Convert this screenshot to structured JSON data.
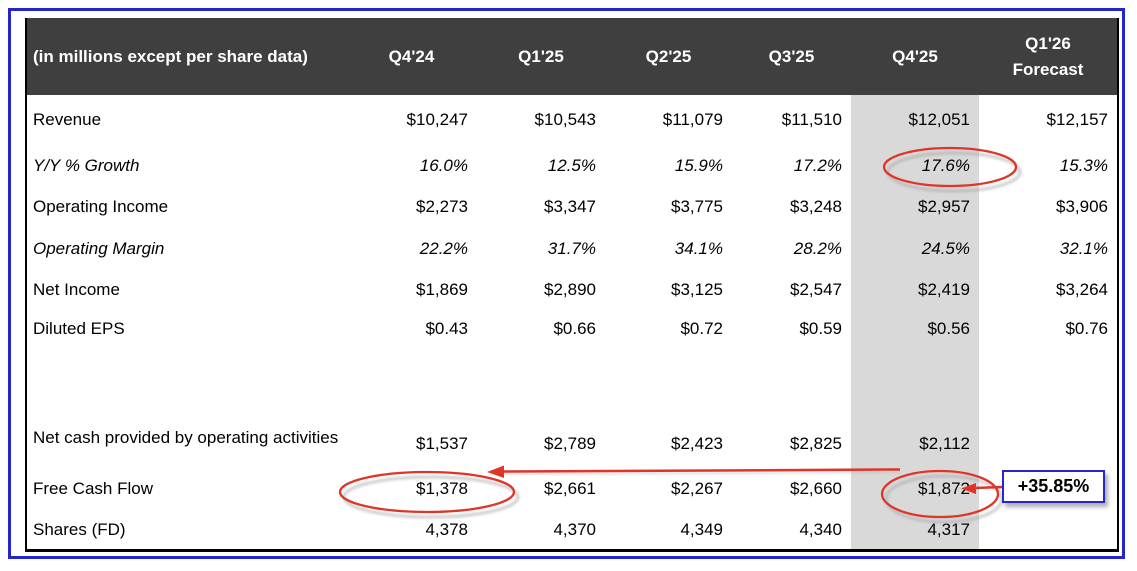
{
  "chart_data": {
    "type": "table",
    "unit_note": "(in millions except per share data)",
    "columns": [
      "Q4'24",
      "Q1'25",
      "Q2'25",
      "Q3'25",
      "Q4'25",
      "Q1'26 Forecast"
    ],
    "highlighted_column": "Q4'25",
    "rows": [
      {
        "label": "Revenue",
        "italic": false,
        "values": [
          "$10,247",
          "$10,543",
          "$11,079",
          "$11,510",
          "$12,051",
          "$12,157"
        ]
      },
      {
        "label": "Y/Y % Growth",
        "italic": true,
        "values": [
          "16.0%",
          "12.5%",
          "15.9%",
          "17.2%",
          "17.6%",
          "15.3%"
        ]
      },
      {
        "label": "Operating Income",
        "italic": false,
        "values": [
          "$2,273",
          "$3,347",
          "$3,775",
          "$3,248",
          "$2,957",
          "$3,906"
        ]
      },
      {
        "label": "Operating Margin",
        "italic": true,
        "values": [
          "22.2%",
          "31.7%",
          "34.1%",
          "28.2%",
          "24.5%",
          "32.1%"
        ]
      },
      {
        "label": "Net Income",
        "italic": false,
        "values": [
          "$1,869",
          "$2,890",
          "$3,125",
          "$2,547",
          "$2,419",
          "$3,264"
        ]
      },
      {
        "label": "Diluted EPS",
        "italic": false,
        "values": [
          "$0.43",
          "$0.66",
          "$0.72",
          "$0.59",
          "$0.56",
          "$0.76"
        ]
      },
      {
        "label": "",
        "italic": false,
        "spacer": true,
        "values": [
          "",
          "",
          "",
          "",
          "",
          ""
        ]
      },
      {
        "label": "Net cash provided by operating activities",
        "italic": false,
        "values": [
          "$1,537",
          "$2,789",
          "$2,423",
          "$2,825",
          "$2,112",
          ""
        ]
      },
      {
        "label": "Free Cash Flow",
        "italic": false,
        "values": [
          "$1,378",
          "$2,661",
          "$2,267",
          "$2,660",
          "$1,872",
          ""
        ]
      },
      {
        "label": "Shares (FD)",
        "italic": false,
        "values": [
          "4,378",
          "4,370",
          "4,349",
          "4,340",
          "4,317",
          ""
        ]
      }
    ],
    "annotations": {
      "callout_label": "+35.85%",
      "circled_values": [
        {
          "row": "Y/Y % Growth",
          "column": "Q4'25",
          "value": "17.6%"
        },
        {
          "row": "Free Cash Flow",
          "column": "Q4'24",
          "value": "$1,378"
        },
        {
          "row": "Free Cash Flow",
          "column": "Q4'25",
          "value": "$1,872"
        }
      ],
      "arrow_meaning": "Free Cash Flow Q4'25 vs Q4'24"
    }
  },
  "colors": {
    "header_bg": "#3f3f3f",
    "header_text": "#ffffff",
    "highlight_column_bg": "#d9d9d9",
    "frame_border": "#2525cd",
    "table_border": "#000000",
    "annotation_red": "#df342a",
    "callout_border": "#2525cd",
    "body_text": "#000000"
  }
}
